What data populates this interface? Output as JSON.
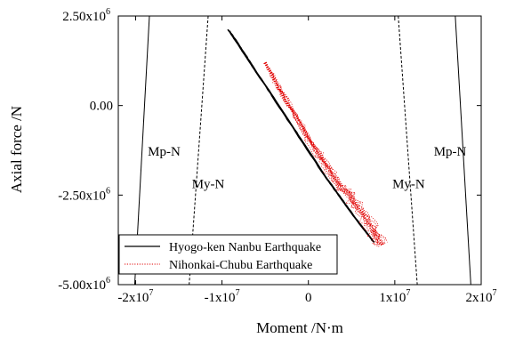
{
  "chart_data": {
    "type": "line",
    "xlabel": "Moment /N·m",
    "ylabel": "Axial force /N",
    "xlim": [
      -22000000,
      20000000
    ],
    "ylim": [
      -5000000,
      2500000
    ],
    "x_ticks": [
      {
        "value": -20000000,
        "label": "-2x10",
        "exp": "7"
      },
      {
        "value": -10000000,
        "label": "-1x10",
        "exp": "7"
      },
      {
        "value": 0,
        "label": "0",
        "exp": ""
      },
      {
        "value": 10000000,
        "label": "1x10",
        "exp": "7"
      },
      {
        "value": 20000000,
        "label": "2x10",
        "exp": "7"
      }
    ],
    "y_ticks": [
      {
        "value": 2500000,
        "label": "2.50x10",
        "exp": "6"
      },
      {
        "value": 0,
        "label": "0.00",
        "exp": ""
      },
      {
        "value": -2500000,
        "label": "-2.50x10",
        "exp": "6"
      },
      {
        "value": -5000000,
        "label": "-5.00x10",
        "exp": "6"
      }
    ],
    "interaction_curves": [
      {
        "name": "Mp-N",
        "style": "solid",
        "color": "#000000",
        "left": [
          [
            -18400000,
            2500000
          ],
          [
            -20100000,
            -5000000
          ]
        ],
        "right": [
          [
            17000000,
            2500000
          ],
          [
            18800000,
            -5000000
          ]
        ]
      },
      {
        "name": "My-N",
        "style": "dashed",
        "color": "#000000",
        "left": [
          [
            -11600000,
            2500000
          ],
          [
            -13800000,
            -5000000
          ]
        ],
        "right": [
          [
            10400000,
            2500000
          ],
          [
            12600000,
            -5000000
          ]
        ]
      }
    ],
    "curve_labels": [
      {
        "text": "Mp-N",
        "x": -16700000,
        "y": -1400000
      },
      {
        "text": "My-N",
        "x": -11600000,
        "y": -2300000
      },
      {
        "text": "My-N",
        "x": 11600000,
        "y": -2300000
      },
      {
        "text": "Mp-N",
        "x": 16400000,
        "y": -1400000
      }
    ],
    "series": [
      {
        "name": "Hyogo-ken Nanbu Earthquake",
        "style": "solid",
        "color": "#000000",
        "x": [
          -9200000,
          -7000000,
          -4000000,
          -1000000,
          2000000,
          5000000,
          7500000
        ],
        "y": [
          2100000,
          1300000,
          200000,
          -900000,
          -2000000,
          -3000000,
          -3800000
        ]
      },
      {
        "name": "Nihonkai-Chubu Earthquake",
        "style": "dotted",
        "color": "#e00000",
        "x": [
          -5000000,
          -3000000,
          -1000000,
          1000000,
          3000000,
          5000000,
          7000000,
          8500000
        ],
        "y": [
          1200000,
          300000,
          -500000,
          -1300000,
          -2000000,
          -2600000,
          -3300000,
          -3900000
        ]
      }
    ],
    "legend": "bottom-left",
    "grid": false
  }
}
